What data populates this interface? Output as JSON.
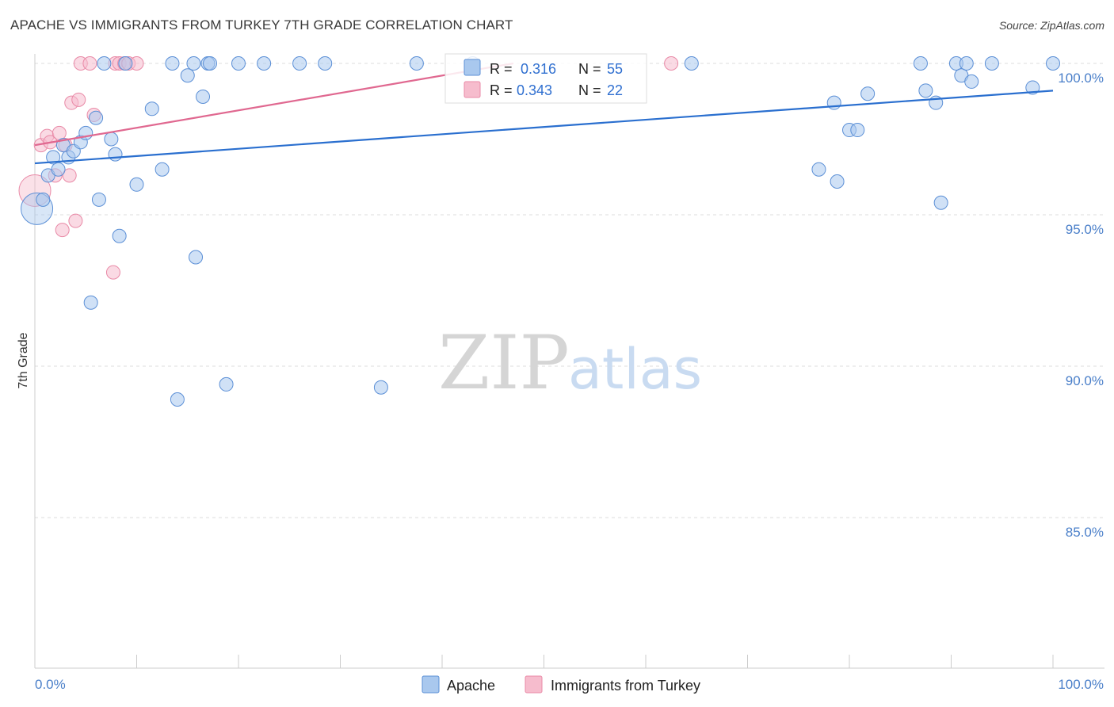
{
  "title": "APACHE VS IMMIGRANTS FROM TURKEY 7TH GRADE CORRELATION CHART",
  "source": "Source: ZipAtlas.com",
  "watermark": {
    "zip": "ZIP",
    "atlas": "atlas"
  },
  "colors": {
    "apache_fill": "#a9c8ee",
    "apache_stroke": "#5b8fd6",
    "apache_line": "#2a6fcf",
    "turkey_fill": "#f6bccd",
    "turkey_stroke": "#e98aa7",
    "turkey_line": "#e06890",
    "grid": "#dddddd",
    "tick_text": "#4a7fc9"
  },
  "legend": {
    "rows": [
      {
        "r_label": "R = ",
        "r_value": "0.316",
        "n_label": "N = ",
        "n_value": "55"
      },
      {
        "r_label": "R = ",
        "r_value": "0.343",
        "n_label": "N = ",
        "n_value": "22"
      }
    ]
  },
  "chart_data": {
    "type": "scatter",
    "title": "APACHE VS IMMIGRANTS FROM TURKEY 7TH GRADE CORRELATION CHART",
    "xlabel": "",
    "ylabel": "7th Grade",
    "xlim": [
      0,
      100
    ],
    "ylim": [
      80.5,
      100.5
    ],
    "x_tick_labels": [
      "0.0%",
      "100.0%"
    ],
    "y_ticks": [
      85,
      90,
      95,
      100
    ],
    "y_tick_labels": [
      "85.0%",
      "90.0%",
      "95.0%",
      "100.0%"
    ],
    "grid": true,
    "legend_position": "top-center",
    "series": [
      {
        "name": "Apache",
        "trend": {
          "x0": 0,
          "y0": 96.7,
          "x1": 100,
          "y1": 99.1
        },
        "points": [
          [
            0.2,
            95.2
          ],
          [
            0.8,
            95.5
          ],
          [
            1.3,
            96.3
          ],
          [
            1.8,
            96.9
          ],
          [
            2.3,
            96.5
          ],
          [
            2.8,
            97.3
          ],
          [
            3.3,
            96.9
          ],
          [
            3.8,
            97.1
          ],
          [
            4.5,
            97.4
          ],
          [
            5.0,
            97.7
          ],
          [
            5.5,
            92.1
          ],
          [
            6.0,
            98.2
          ],
          [
            6.3,
            95.5
          ],
          [
            7.5,
            97.5
          ],
          [
            7.9,
            97.0
          ],
          [
            8.3,
            94.3
          ],
          [
            6.8,
            100.0
          ],
          [
            8.9,
            100.0
          ],
          [
            10.0,
            96.0
          ],
          [
            11.5,
            98.5
          ],
          [
            12.5,
            96.5
          ],
          [
            13.5,
            100.0
          ],
          [
            14.0,
            88.9
          ],
          [
            15.0,
            99.6
          ],
          [
            15.6,
            100.0
          ],
          [
            15.8,
            93.6
          ],
          [
            16.5,
            98.9
          ],
          [
            17.0,
            100.0
          ],
          [
            17.2,
            100.0
          ],
          [
            18.8,
            89.4
          ],
          [
            20.0,
            100.0
          ],
          [
            22.5,
            100.0
          ],
          [
            26.0,
            100.0
          ],
          [
            28.5,
            100.0
          ],
          [
            34.0,
            89.3
          ],
          [
            37.5,
            100.0
          ],
          [
            43.0,
            100.0
          ],
          [
            64.5,
            100.0
          ],
          [
            77.0,
            96.5
          ],
          [
            78.5,
            98.7
          ],
          [
            78.8,
            96.1
          ],
          [
            80.0,
            97.8
          ],
          [
            80.8,
            97.8
          ],
          [
            81.8,
            99.0
          ],
          [
            87.0,
            100.0
          ],
          [
            87.5,
            99.1
          ],
          [
            88.5,
            98.7
          ],
          [
            89.0,
            95.4
          ],
          [
            90.5,
            100.0
          ],
          [
            91.0,
            99.6
          ],
          [
            91.5,
            100.0
          ],
          [
            92.0,
            99.4
          ],
          [
            94.0,
            100.0
          ],
          [
            98.0,
            99.2
          ],
          [
            100.0,
            100.0
          ]
        ]
      },
      {
        "name": "Immigrants from Turkey",
        "trend": {
          "x0": 0,
          "y0": 97.3,
          "x1": 47,
          "y1": 100.0
        },
        "points": [
          [
            0.0,
            95.8
          ],
          [
            0.6,
            97.3
          ],
          [
            1.2,
            97.6
          ],
          [
            1.5,
            97.4
          ],
          [
            2.0,
            96.3
          ],
          [
            2.4,
            97.7
          ],
          [
            2.7,
            94.5
          ],
          [
            3.0,
            97.3
          ],
          [
            3.4,
            96.3
          ],
          [
            3.6,
            98.7
          ],
          [
            4.0,
            94.8
          ],
          [
            4.3,
            98.8
          ],
          [
            4.5,
            100.0
          ],
          [
            5.4,
            100.0
          ],
          [
            5.8,
            98.3
          ],
          [
            7.7,
            93.1
          ],
          [
            7.9,
            100.0
          ],
          [
            8.3,
            100.0
          ],
          [
            8.8,
            100.0
          ],
          [
            9.2,
            100.0
          ],
          [
            10.0,
            100.0
          ],
          [
            62.5,
            100.0
          ]
        ]
      }
    ]
  }
}
